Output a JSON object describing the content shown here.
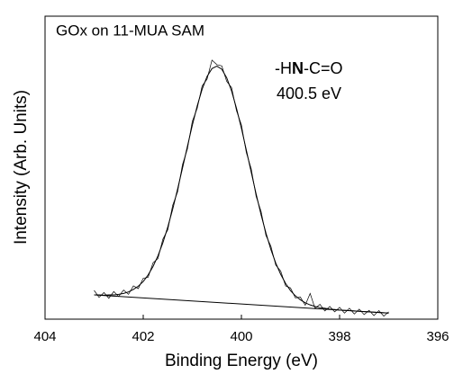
{
  "chart_data": {
    "type": "line",
    "title": "GOx on 11-MUA SAM",
    "annotation_1": [
      "-H",
      "N",
      "-C=O"
    ],
    "annotation_2": "400.5 eV",
    "xlabel": "Binding Energy (eV)",
    "ylabel": "Intensity (Arb. Units)",
    "xlim": [
      404,
      396
    ],
    "xticks": [
      404,
      402,
      400,
      398,
      396
    ],
    "ylim": [
      0,
      100
    ],
    "x": [
      403.0,
      402.9,
      402.8,
      402.7,
      402.6,
      402.5,
      402.4,
      402.3,
      402.2,
      402.1,
      402.0,
      401.9,
      401.8,
      401.7,
      401.6,
      401.5,
      401.4,
      401.3,
      401.2,
      401.1,
      401.0,
      400.9,
      400.8,
      400.7,
      400.6,
      400.5,
      400.4,
      400.3,
      400.2,
      400.1,
      400.0,
      399.9,
      399.8,
      399.7,
      399.6,
      399.5,
      399.4,
      399.3,
      399.2,
      399.1,
      399.0,
      398.9,
      398.8,
      398.7,
      398.6,
      398.5,
      398.4,
      398.3,
      398.2,
      398.1,
      398.0,
      397.9,
      397.8,
      397.7,
      397.6,
      397.5,
      397.4,
      397.3,
      397.2,
      397.1,
      397.0
    ],
    "series": [
      {
        "color": "#000000",
        "values": [
          9.5,
          7.2,
          8.8,
          6.9,
          9.1,
          7.5,
          9.6,
          8.2,
          11.0,
          10.1,
          13.5,
          13.8,
          18.6,
          20.0,
          26.4,
          29.5,
          37.6,
          42.0,
          51.0,
          56.2,
          65.3,
          69.6,
          77.0,
          79.2,
          85.5,
          84.0,
          83.6,
          78.5,
          76.4,
          68.8,
          64.1,
          55.0,
          49.6,
          40.5,
          35.6,
          27.6,
          24.1,
          17.8,
          15.9,
          11.0,
          10.3,
          7.0,
          7.3,
          4.6,
          8.5,
          3.5,
          4.9,
          2.7,
          4.2,
          2.4,
          3.9,
          2.0,
          3.6,
          1.7,
          3.3,
          1.5,
          2.9,
          1.2,
          2.8,
          1.0,
          2.4
        ]
      },
      {
        "color": "#000000",
        "values": [
          8.0,
          8.0,
          7.9,
          8.0,
          8.0,
          8.2,
          8.5,
          9.0,
          9.8,
          10.9,
          12.4,
          14.6,
          17.4,
          20.9,
          25.2,
          30.4,
          36.3,
          42.9,
          49.9,
          57.0,
          64.0,
          70.4,
          75.9,
          80.1,
          82.7,
          83.5,
          82.5,
          79.7,
          75.3,
          69.6,
          63.0,
          55.8,
          48.5,
          41.3,
          34.5,
          28.4,
          23.0,
          18.5,
          14.8,
          11.8,
          9.4,
          7.7,
          6.4,
          5.4,
          4.7,
          4.2,
          3.8,
          3.6,
          3.3,
          3.2,
          3.0,
          2.9,
          2.8,
          2.7,
          2.6,
          2.5,
          2.4,
          2.3,
          2.2,
          2.1,
          2.0
        ]
      },
      {
        "color": "#000000",
        "x": [
          403,
          397
        ],
        "values": [
          8,
          2
        ]
      }
    ]
  }
}
